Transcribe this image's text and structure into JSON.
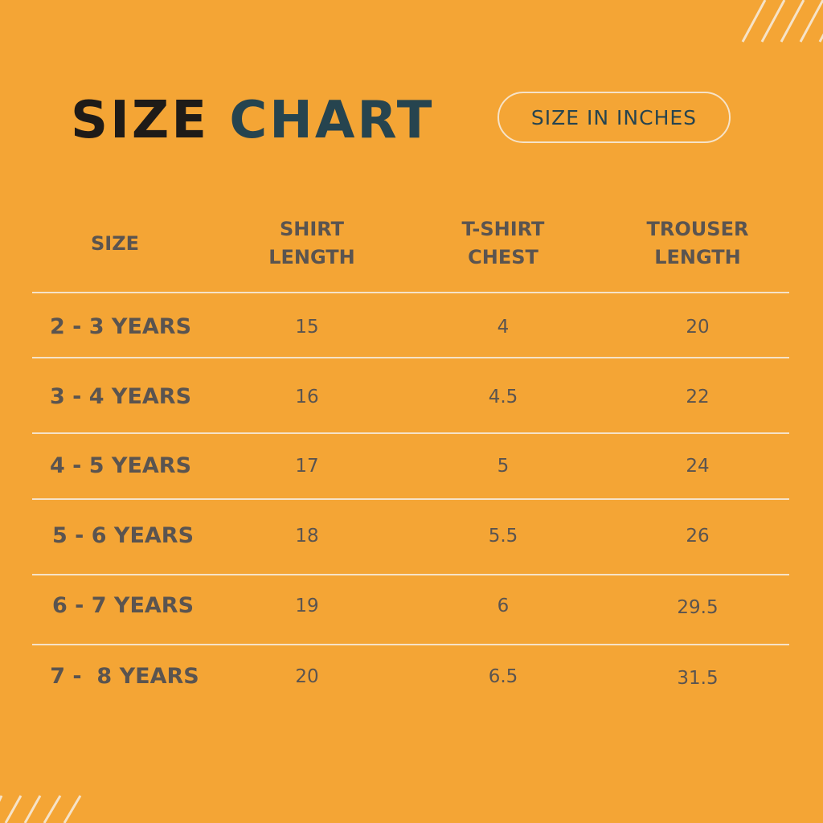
{
  "title": {
    "part1": "SIZE",
    "part2": "CHART"
  },
  "unit_badge": "SIZE IN INCHES",
  "colors": {
    "background": "#F4A535",
    "title_dark": "#1E1B18",
    "title_accent": "#26444F",
    "text": "#5A5450",
    "lines": "#F6E3C8"
  },
  "table": {
    "headers": [
      "SIZE",
      "SHIRT LENGTH",
      "T-SHIRT CHEST",
      "TROUSER LENGTH"
    ],
    "header_lines": [
      [
        "SIZE"
      ],
      [
        "SHIRT",
        "LENGTH"
      ],
      [
        "T-SHIRT",
        "CHEST"
      ],
      [
        "TROUSER",
        "LENGTH"
      ]
    ],
    "rows": [
      [
        "2 - 3 YEARS",
        "15",
        "4",
        "20"
      ],
      [
        "3 - 4 YEARS",
        "16",
        "4.5",
        "22"
      ],
      [
        "4 - 5 YEARS",
        "17",
        "5",
        "24"
      ],
      [
        "5 - 6 YEARS",
        "18",
        "5.5",
        "26"
      ],
      [
        "6 - 7 YEARS",
        "19",
        "6",
        "29.5"
      ],
      [
        "7 -  8 YEARS",
        "20",
        "6.5",
        "31.5"
      ]
    ]
  }
}
